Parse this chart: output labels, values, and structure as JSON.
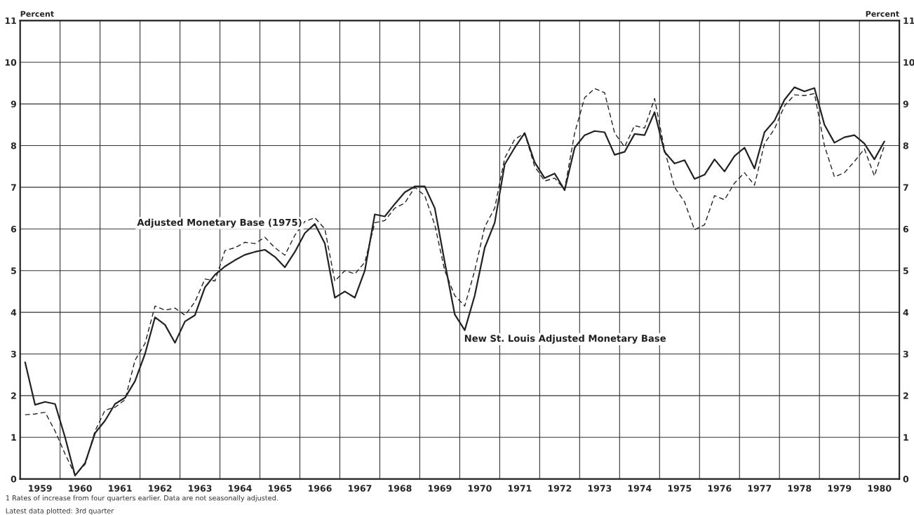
{
  "chart_data": {
    "type": "line",
    "ylabel": "Percent",
    "y2label": "Percent",
    "ylim": [
      0,
      11
    ],
    "yticks": [
      0,
      1,
      2,
      3,
      4,
      5,
      6,
      7,
      8,
      9,
      10,
      11
    ],
    "y2lim": [
      0,
      11
    ],
    "y2ticks": [
      0,
      1,
      2,
      3,
      4,
      5,
      6,
      7,
      8,
      9,
      10,
      11
    ],
    "xlim": [
      1959,
      1981
    ],
    "xticks": [
      {
        "value": 1959,
        "label": null
      },
      {
        "value": 1959.5,
        "label": "1959"
      },
      {
        "value": 1960,
        "label": null
      },
      {
        "value": 1960.5,
        "label": "1960"
      },
      {
        "value": 1961,
        "label": null
      },
      {
        "value": 1961.5,
        "label": "1961"
      },
      {
        "value": 1962,
        "label": null
      },
      {
        "value": 1962.5,
        "label": "1962"
      },
      {
        "value": 1963,
        "label": null
      },
      {
        "value": 1963.5,
        "label": "1963"
      },
      {
        "value": 1964,
        "label": null
      },
      {
        "value": 1964.5,
        "label": "1964"
      },
      {
        "value": 1965,
        "label": null
      },
      {
        "value": 1965.5,
        "label": "1965"
      },
      {
        "value": 1966,
        "label": null
      },
      {
        "value": 1966.5,
        "label": "1966"
      },
      {
        "value": 1967,
        "label": null
      },
      {
        "value": 1967.5,
        "label": "1967"
      },
      {
        "value": 1968,
        "label": null
      },
      {
        "value": 1968.5,
        "label": "1968"
      },
      {
        "value": 1969,
        "label": null
      },
      {
        "value": 1969.5,
        "label": "1969"
      },
      {
        "value": 1970,
        "label": null
      },
      {
        "value": 1970.5,
        "label": "1970"
      },
      {
        "value": 1971,
        "label": null
      },
      {
        "value": 1971.5,
        "label": "1971"
      },
      {
        "value": 1972,
        "label": null
      },
      {
        "value": 1972.5,
        "label": "1972"
      },
      {
        "value": 1973,
        "label": null
      },
      {
        "value": 1973.5,
        "label": "1973"
      },
      {
        "value": 1974,
        "label": null
      },
      {
        "value": 1974.5,
        "label": "1974"
      },
      {
        "value": 1975,
        "label": null
      },
      {
        "value": 1975.5,
        "label": "1975"
      },
      {
        "value": 1976,
        "label": null
      },
      {
        "value": 1976.5,
        "label": "1976"
      },
      {
        "value": 1977,
        "label": null
      },
      {
        "value": 1977.5,
        "label": "1977"
      },
      {
        "value": 1978,
        "label": null
      },
      {
        "value": 1978.5,
        "label": "1978"
      },
      {
        "value": 1979,
        "label": null
      },
      {
        "value": 1979.5,
        "label": "1979"
      },
      {
        "value": 1980,
        "label": null
      },
      {
        "value": 1980.5,
        "label": "1980"
      },
      {
        "value": 1981,
        "label": null
      }
    ],
    "x": [
      1959.125,
      1959.375,
      1959.625,
      1959.875,
      1960.125,
      1960.375,
      1960.625,
      1960.875,
      1961.125,
      1961.375,
      1961.625,
      1961.875,
      1962.125,
      1962.375,
      1962.625,
      1962.875,
      1963.125,
      1963.375,
      1963.625,
      1963.875,
      1964.125,
      1964.375,
      1964.625,
      1964.875,
      1965.125,
      1965.375,
      1965.625,
      1965.875,
      1966.125,
      1966.375,
      1966.625,
      1966.875,
      1967.125,
      1967.375,
      1967.625,
      1967.875,
      1968.125,
      1968.375,
      1968.625,
      1968.875,
      1969.125,
      1969.375,
      1969.625,
      1969.875,
      1970.125,
      1970.375,
      1970.625,
      1970.875,
      1971.125,
      1971.375,
      1971.625,
      1971.875,
      1972.125,
      1972.375,
      1972.625,
      1972.875,
      1973.125,
      1973.375,
      1973.625,
      1973.875,
      1974.125,
      1974.375,
      1974.625,
      1974.875,
      1975.125,
      1975.375,
      1975.625,
      1975.875,
      1976.125,
      1976.375,
      1976.625,
      1976.875,
      1977.125,
      1977.375,
      1977.625,
      1977.875,
      1978.125,
      1978.375,
      1978.625,
      1978.875,
      1979.125,
      1979.375,
      1979.625,
      1979.875,
      1980.125,
      1980.375,
      1980.625
    ],
    "grid": true,
    "legend": false,
    "marker": "none",
    "series": [
      {
        "name": "New St. Louis Adjusted Monetary Base",
        "color": "#222222",
        "line_style": "solid",
        "values": [
          2.8,
          1.78,
          1.85,
          1.8,
          1.0,
          0.08,
          0.38,
          1.1,
          1.4,
          1.8,
          1.95,
          2.35,
          3.0,
          3.88,
          3.7,
          3.27,
          3.78,
          3.93,
          4.6,
          4.9,
          5.1,
          5.25,
          5.38,
          5.45,
          5.5,
          5.33,
          5.08,
          5.45,
          5.9,
          6.12,
          5.65,
          4.35,
          4.5,
          4.35,
          5.0,
          6.35,
          6.3,
          6.6,
          6.88,
          7.02,
          7.02,
          6.5,
          5.2,
          3.95,
          3.57,
          4.4,
          5.55,
          6.15,
          7.55,
          7.95,
          8.3,
          7.6,
          7.22,
          7.33,
          6.93,
          7.95,
          8.25,
          8.35,
          8.32,
          7.78,
          7.85,
          8.28,
          8.25,
          8.8,
          7.85,
          7.57,
          7.65,
          7.2,
          7.3,
          7.67,
          7.38,
          7.75,
          7.95,
          7.45,
          8.32,
          8.6,
          9.1,
          9.4,
          9.3,
          9.38,
          8.5,
          8.07,
          8.2,
          8.25,
          8.05,
          7.67,
          8.1
        ]
      },
      {
        "name": "Adjusted Monetary Base (1975)",
        "color": "#222222",
        "line_style": "dashed",
        "values": [
          1.54,
          1.56,
          1.6,
          1.15,
          0.6,
          0.1,
          0.35,
          1.15,
          1.65,
          1.72,
          1.9,
          2.85,
          3.25,
          4.15,
          4.05,
          4.1,
          3.93,
          4.25,
          4.8,
          4.75,
          5.48,
          5.55,
          5.68,
          5.65,
          5.8,
          5.55,
          5.37,
          5.85,
          6.18,
          6.27,
          6.0,
          4.75,
          5.0,
          4.92,
          5.2,
          6.15,
          6.2,
          6.5,
          6.62,
          7.0,
          6.8,
          6.1,
          5.0,
          4.4,
          4.15,
          5.0,
          6.05,
          6.5,
          7.7,
          8.15,
          8.3,
          7.5,
          7.15,
          7.22,
          6.95,
          8.3,
          9.15,
          9.37,
          9.27,
          8.3,
          7.97,
          8.48,
          8.42,
          9.13,
          7.9,
          7.0,
          6.65,
          5.98,
          6.1,
          6.8,
          6.7,
          7.1,
          7.35,
          7.05,
          8.05,
          8.4,
          8.95,
          9.22,
          9.2,
          9.25,
          8.0,
          7.25,
          7.35,
          7.62,
          7.92,
          7.27,
          8.0
        ]
      }
    ],
    "annotations": [
      "1 Rates of increase from four quarters earlier. Data are not seasonally adjusted.",
      "Latest data plotted: 3rd quarter"
    ]
  }
}
